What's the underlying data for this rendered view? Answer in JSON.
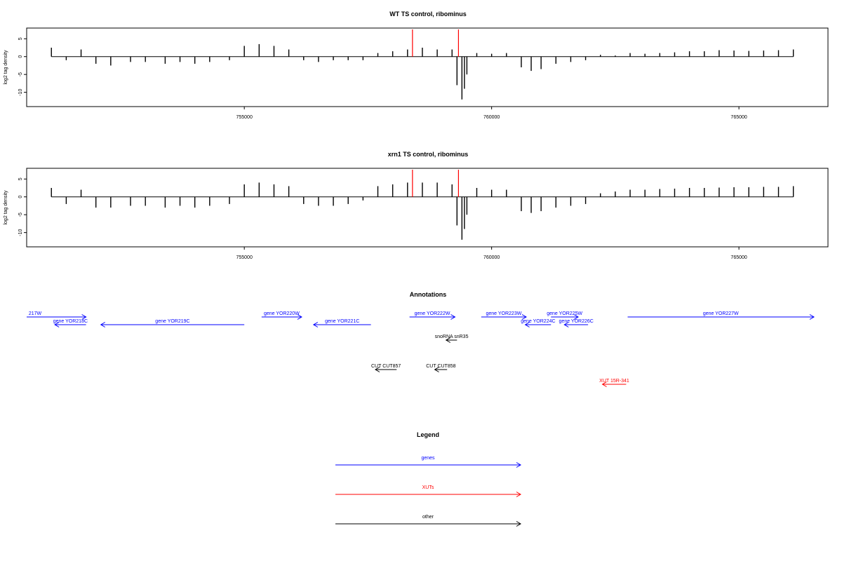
{
  "panels": [
    {
      "title": "WT TS control, ribominus",
      "ylabel": "log2 tag density",
      "yticks": [
        "5",
        "0",
        "-5",
        "-10"
      ],
      "xticks": [
        "755000",
        "760000",
        "765000"
      ]
    },
    {
      "title": "xrn1 TS control, ribominus",
      "ylabel": "log2 tag density",
      "yticks": [
        "5",
        "0",
        "-5",
        "-10"
      ],
      "xticks": [
        "755000",
        "760000",
        "765000"
      ]
    }
  ],
  "annotations": {
    "title": "Annotations",
    "features": [
      {
        "label": "217W",
        "strand": "+",
        "start": 750600,
        "end": 751800,
        "color": "#0000ff"
      },
      {
        "label": "gene YOR218C",
        "strand": "-",
        "start": 751170,
        "end": 751800,
        "color": "#0000ff"
      },
      {
        "label": "gene YOR219C",
        "strand": "-",
        "start": 752100,
        "end": 755000,
        "color": "#0000ff"
      },
      {
        "label": "gene YOR220W",
        "strand": "+",
        "start": 755350,
        "end": 756160,
        "color": "#0000ff"
      },
      {
        "label": "gene YOR221C",
        "strand": "-",
        "start": 756400,
        "end": 757560,
        "color": "#0000ff"
      },
      {
        "label": "gene YOR222W",
        "strand": "+",
        "start": 758340,
        "end": 759260,
        "color": "#0000ff"
      },
      {
        "label": "gene YOR223W",
        "strand": "+",
        "start": 759790,
        "end": 760700,
        "color": "#0000ff"
      },
      {
        "label": "gene YOR224C",
        "strand": "-",
        "start": 760680,
        "end": 761200,
        "color": "#0000ff"
      },
      {
        "label": "gene YOR225W",
        "strand": "+",
        "start": 761200,
        "end": 761750,
        "color": "#0000ff"
      },
      {
        "label": "gene YOR226C",
        "strand": "-",
        "start": 761470,
        "end": 761950,
        "color": "#0000ff"
      },
      {
        "label": "gene YOR227W",
        "strand": "+",
        "start": 762750,
        "end": 766600,
        "color": "#0000ff"
      },
      {
        "label": "snoRNA snR35",
        "strand": "-",
        "start": 759080,
        "end": 759300,
        "color": "#000000"
      },
      {
        "label": "CUT CUT857",
        "strand": "-",
        "start": 757650,
        "end": 758080,
        "color": "#000000"
      },
      {
        "label": "CUT CUT858",
        "strand": "-",
        "start": 758850,
        "end": 759100,
        "color": "#000000"
      },
      {
        "label": "XUT 15R-341",
        "strand": "-",
        "start": 762240,
        "end": 762720,
        "color": "#ff0000"
      }
    ]
  },
  "legend": {
    "title": "Legend",
    "items": [
      {
        "label": "genes",
        "color": "#0000ff"
      },
      {
        "label": "XUTs",
        "color": "#ff0000"
      },
      {
        "label": "other",
        "color": "#000000"
      }
    ]
  },
  "chart_data": [
    {
      "type": "bar",
      "title": "WT TS control, ribominus",
      "xlabel": "",
      "ylabel": "log2 tag density",
      "xlim": [
        750600,
        766800
      ],
      "ylim": [
        -14,
        8
      ],
      "highlight_lines_x": [
        758400,
        759330
      ],
      "highlight_color": "#ff0000",
      "series": [
        {
          "values_x": [
            751100,
            751400,
            751700,
            752000,
            752300,
            752700,
            753000,
            753400,
            753700,
            754000,
            754300,
            754700,
            755000,
            755300,
            755600,
            755900,
            756200,
            756500,
            756800,
            757100,
            757400,
            757700,
            758000,
            758300,
            758600,
            758900,
            759200,
            759300,
            759400,
            759450,
            759500,
            759700,
            760000,
            760300,
            760600,
            760800,
            761000,
            761300,
            761600,
            761900,
            762200,
            762500,
            762800,
            763100,
            763400,
            763700,
            764000,
            764300,
            764600,
            764900,
            765200,
            765500,
            765800,
            766100
          ],
          "values": [
            2.5,
            -1,
            2,
            -2,
            -2.5,
            -1.5,
            -1.5,
            -2,
            -1.5,
            -2,
            -1.5,
            -1,
            3,
            3.5,
            3,
            2,
            -1,
            -1.5,
            -1,
            -1,
            -1,
            1,
            1.5,
            2,
            2.5,
            2,
            2,
            -8,
            -12,
            -9,
            -5,
            1,
            0.8,
            1,
            -3,
            -4,
            -3.5,
            -2,
            -1.5,
            -1,
            0.5,
            0.3,
            1,
            0.8,
            1,
            1.2,
            1.5,
            1.5,
            1.8,
            1.7,
            1.6,
            1.7,
            1.8,
            2
          ]
        }
      ]
    },
    {
      "type": "bar",
      "title": "xrn1 TS control, ribominus",
      "xlabel": "",
      "ylabel": "log2 tag density",
      "xlim": [
        750600,
        766800
      ],
      "ylim": [
        -14,
        8
      ],
      "highlight_lines_x": [
        758400,
        759330
      ],
      "highlight_color": "#ff0000",
      "series": [
        {
          "values_x": [
            751100,
            751400,
            751700,
            752000,
            752300,
            752700,
            753000,
            753400,
            753700,
            754000,
            754300,
            754700,
            755000,
            755300,
            755600,
            755900,
            756200,
            756500,
            756800,
            757100,
            757400,
            757700,
            758000,
            758300,
            758600,
            758900,
            759200,
            759300,
            759400,
            759450,
            759500,
            759700,
            760000,
            760300,
            760600,
            760800,
            761000,
            761300,
            761600,
            761900,
            762200,
            762500,
            762800,
            763100,
            763400,
            763700,
            764000,
            764300,
            764600,
            764900,
            765200,
            765500,
            765800,
            766100
          ],
          "values": [
            2.5,
            -2,
            2,
            -3,
            -3,
            -2.5,
            -2.5,
            -3,
            -2.5,
            -3,
            -2.5,
            -2,
            3.5,
            4,
            3.5,
            3,
            -2,
            -2.5,
            -2.5,
            -2,
            -1,
            3,
            3.5,
            4,
            4,
            4,
            3.5,
            -8,
            -12,
            -9,
            -5,
            2.5,
            2,
            2,
            -4,
            -4.5,
            -4,
            -3,
            -2.5,
            -2,
            1,
            1.5,
            2,
            2,
            2.2,
            2.3,
            2.5,
            2.5,
            2.6,
            2.7,
            2.7,
            2.8,
            2.8,
            3
          ]
        }
      ]
    }
  ]
}
